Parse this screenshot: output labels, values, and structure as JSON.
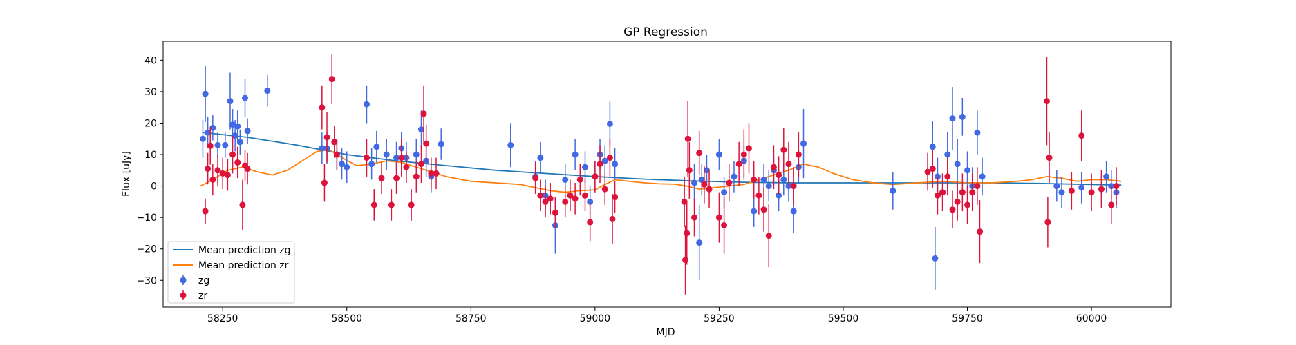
{
  "chart_data": {
    "type": "scatter",
    "title": "GP Regression",
    "xlabel": "MJD",
    "ylabel": "Flux [uJy]",
    "xlim": [
      58130,
      60160
    ],
    "ylim": [
      -38.5,
      46
    ],
    "xticks": [
      58250,
      58500,
      58750,
      59000,
      59250,
      59500,
      59750,
      60000
    ],
    "yticks": [
      -30,
      -20,
      -10,
      0,
      10,
      20,
      30,
      40
    ],
    "grid": false,
    "legend_position": "lower-left",
    "legend": [
      "Mean prediction zg",
      "Mean prediction zr",
      "zg",
      "zr"
    ],
    "series": [
      {
        "name": "Mean prediction zg",
        "kind": "line",
        "color": "#1f77b4",
        "x": [
          58210,
          58300,
          58400,
          58500,
          58600,
          58700,
          58800,
          58900,
          59000,
          59100,
          59200,
          59300,
          59400,
          59500,
          59600,
          59700,
          59800,
          59900,
          60000,
          60060
        ],
        "y": [
          17,
          15.5,
          13,
          10,
          8,
          6.5,
          5,
          4,
          3,
          2.2,
          1.6,
          1.2,
          1,
          1,
          1,
          1,
          1,
          0.8,
          0.5,
          0.3
        ]
      },
      {
        "name": "Mean prediction zr",
        "kind": "line",
        "color": "#ff7f0e",
        "x": [
          58205,
          58230,
          58260,
          58290,
          58320,
          58350,
          58380,
          58410,
          58440,
          58465,
          58490,
          58520,
          58550,
          58580,
          58610,
          58640,
          58670,
          58700,
          58750,
          58800,
          58850,
          58880,
          58910,
          58940,
          58970,
          59000,
          59020,
          59040,
          59070,
          59100,
          59130,
          59160,
          59185,
          59210,
          59240,
          59270,
          59300,
          59330,
          59360,
          59390,
          59420,
          59450,
          59480,
          59520,
          59560,
          59600,
          59650,
          59700,
          59750,
          59800,
          59850,
          59880,
          59910,
          59940,
          59970,
          60000,
          60030,
          60060
        ],
        "y": [
          0,
          2,
          5,
          6,
          4.5,
          3.5,
          5,
          8,
          11,
          11.5,
          9,
          6.5,
          7,
          8,
          7.5,
          6,
          4.5,
          3,
          1.5,
          1,
          0.5,
          -0.5,
          -1.5,
          -2,
          -1.5,
          -1.2,
          0.5,
          2,
          1.5,
          1,
          0.7,
          0.6,
          0,
          -1,
          -0.5,
          0,
          0.5,
          2,
          3.5,
          5,
          7,
          6,
          4,
          2,
          1,
          0.5,
          1,
          1.5,
          1,
          1,
          1.5,
          2,
          3,
          2.5,
          1.5,
          2,
          2,
          1.5
        ]
      },
      {
        "name": "zg",
        "kind": "errorbar",
        "color": "#4169e1",
        "x": [
          58210,
          58215,
          58220,
          58230,
          58240,
          58255,
          58265,
          58270,
          58275,
          58280,
          58285,
          58295,
          58300,
          58340,
          58450,
          58460,
          58480,
          58490,
          58500,
          58540,
          58550,
          58560,
          58580,
          58600,
          58610,
          58620,
          58640,
          58650,
          58660,
          58670,
          58690,
          58830,
          58880,
          58890,
          58900,
          58920,
          58940,
          58960,
          58980,
          58990,
          59000,
          59010,
          59020,
          59030,
          59040,
          59200,
          59210,
          59215,
          59225,
          59250,
          59260,
          59280,
          59300,
          59320,
          59340,
          59350,
          59360,
          59370,
          59380,
          59390,
          59400,
          59410,
          59420,
          59600,
          59680,
          59685,
          59690,
          59700,
          59710,
          59720,
          59730,
          59740,
          59750,
          59760,
          59770,
          59780,
          59930,
          59940,
          59980,
          60020,
          60030,
          60040,
          60050
        ],
        "y": [
          15,
          29.3,
          17,
          18.5,
          13,
          13,
          27,
          19.5,
          16,
          19,
          14,
          28,
          17.5,
          30.3,
          12,
          12,
          10,
          7,
          6,
          26,
          7,
          12.5,
          10,
          9,
          12,
          9,
          10,
          18,
          8,
          3,
          13.3,
          13,
          3,
          9,
          -3,
          -12.5,
          2,
          10,
          6,
          -5,
          3,
          10,
          8,
          19.8,
          7,
          1,
          -18,
          2,
          5,
          10,
          -2,
          3,
          8,
          -8,
          2,
          0,
          5,
          -3,
          2,
          0,
          -8,
          6,
          13.5,
          -1.5,
          12.5,
          -23,
          3,
          -2,
          10,
          21.5,
          7,
          22,
          5,
          0,
          17,
          3,
          0,
          -2,
          -0.5,
          -1,
          3,
          0,
          -2
        ],
        "yerr": [
          6,
          9,
          5,
          4,
          4,
          4,
          9,
          5,
          5,
          5,
          4,
          6,
          4,
          5,
          5,
          5,
          5,
          5,
          5,
          6,
          5,
          5,
          5,
          5,
          5,
          5,
          5,
          6,
          5,
          5,
          5,
          7,
          5,
          5,
          5,
          9,
          5,
          5,
          5,
          5,
          5,
          5,
          5,
          7,
          5,
          6,
          12,
          5,
          5,
          5,
          5,
          5,
          5,
          5,
          5,
          5,
          5,
          5,
          5,
          5,
          7,
          5,
          11,
          6,
          8,
          10,
          6,
          6,
          7,
          10,
          8,
          6,
          6,
          6,
          7,
          6,
          5,
          5,
          5,
          5,
          5,
          5,
          5
        ]
      },
      {
        "name": "zr",
        "kind": "errorbar",
        "color": "#dc143c",
        "x": [
          58215,
          58220,
          58225,
          58230,
          58240,
          58250,
          58260,
          58270,
          58280,
          58290,
          58295,
          58300,
          58450,
          58455,
          58460,
          58470,
          58475,
          58480,
          58540,
          58555,
          58570,
          58590,
          58600,
          58610,
          58620,
          58630,
          58640,
          58650,
          58655,
          58660,
          58670,
          58680,
          58880,
          58890,
          58900,
          58910,
          58920,
          58940,
          58950,
          58960,
          58970,
          58980,
          58990,
          59000,
          59010,
          59020,
          59030,
          59035,
          59040,
          59180,
          59182,
          59185,
          59187,
          59190,
          59200,
          59210,
          59220,
          59230,
          59250,
          59260,
          59270,
          59290,
          59300,
          59310,
          59320,
          59330,
          59340,
          59350,
          59360,
          59370,
          59380,
          59390,
          59400,
          59410,
          59670,
          59680,
          59690,
          59700,
          59710,
          59720,
          59730,
          59740,
          59750,
          59760,
          59770,
          59775,
          59910,
          59912,
          59915,
          59960,
          59980,
          60000,
          60020,
          60040,
          60050
        ],
        "y": [
          -8,
          5.5,
          12.8,
          2,
          5,
          4,
          3.5,
          10,
          7.5,
          -6,
          6.5,
          5.5,
          25,
          1,
          15.5,
          34,
          14,
          10,
          9,
          -6,
          2.5,
          -6,
          2.5,
          9,
          6,
          -6,
          3,
          7,
          23,
          13.5,
          4,
          4,
          2.5,
          -3,
          -5,
          -4,
          -8.5,
          -5,
          -3,
          -4,
          2,
          -3,
          -11.5,
          3,
          7,
          -1,
          9,
          -10.5,
          -3.5,
          -5,
          -23.5,
          -15,
          15,
          5,
          -10,
          10.5,
          0.5,
          -1,
          -10,
          -12.5,
          1,
          7,
          10,
          12,
          2,
          -3,
          -7.5,
          -15.8,
          6,
          3.5,
          11.5,
          7,
          0,
          10,
          4.5,
          5.5,
          -3,
          -2,
          3,
          -7.5,
          -5,
          -2,
          -6,
          -2,
          0,
          -14.5,
          27,
          -11.5,
          9,
          -1.5,
          16,
          -2,
          -1,
          -6,
          0
        ],
        "yerr": [
          4,
          5,
          6,
          5,
          5,
          5,
          5,
          6,
          5,
          8,
          5,
          5,
          7,
          6,
          8,
          8,
          5,
          5,
          6,
          5,
          5,
          5,
          5,
          6,
          5,
          5,
          5,
          6,
          9,
          6,
          5,
          5,
          5,
          5,
          5,
          5,
          5,
          5,
          5,
          5,
          5,
          5,
          6,
          5,
          6,
          5,
          6,
          8,
          5,
          8,
          11,
          10,
          12,
          9,
          6,
          7,
          6,
          6,
          8,
          9,
          6,
          7,
          8,
          8,
          6,
          6,
          7,
          10,
          7,
          6,
          7,
          7,
          6,
          7,
          6,
          6,
          6,
          6,
          6,
          6,
          6,
          6,
          6,
          6,
          6,
          10,
          14,
          8,
          8,
          6,
          8,
          6,
          6,
          6,
          6
        ]
      }
    ]
  }
}
